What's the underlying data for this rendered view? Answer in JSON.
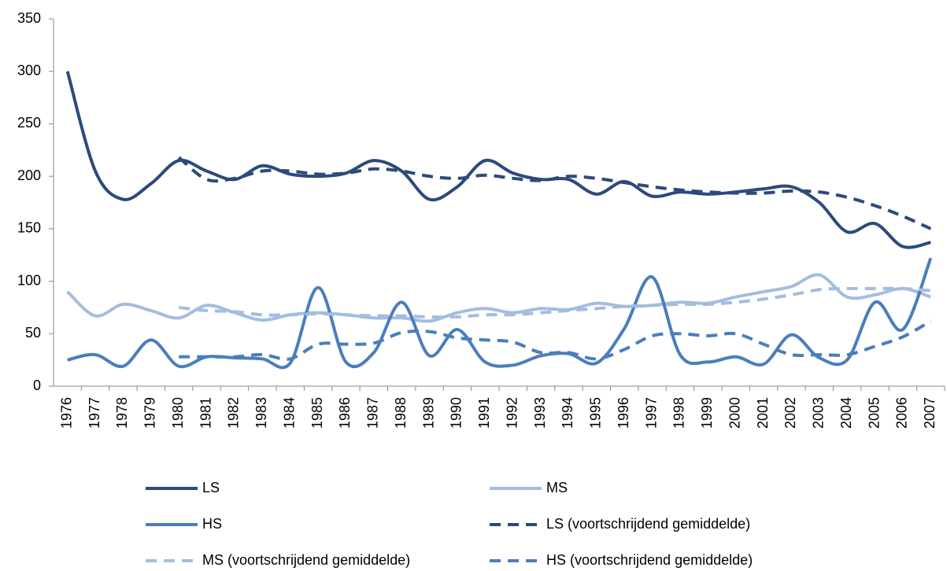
{
  "chart_data": {
    "type": "line",
    "categories": [
      "1976",
      "1977",
      "1978",
      "1979",
      "1980",
      "1981",
      "1982",
      "1983",
      "1984",
      "1985",
      "1986",
      "1987",
      "1988",
      "1989",
      "1990",
      "1991",
      "1992",
      "1993",
      "1994",
      "1995",
      "1996",
      "1997",
      "1998",
      "1999",
      "2000",
      "2001",
      "2002",
      "2003",
      "2004",
      "2005",
      "2006",
      "2007"
    ],
    "ylim": [
      0,
      350
    ],
    "yticks": [
      0,
      50,
      100,
      150,
      200,
      250,
      300,
      350
    ],
    "grid": false,
    "legend": "bottom",
    "smooth": true,
    "series": [
      {
        "name": "LS",
        "color": "#2c4a7c",
        "dashed": false,
        "values": [
          300,
          205,
          178,
          193,
          215,
          205,
          197,
          210,
          202,
          200,
          203,
          215,
          205,
          178,
          190,
          215,
          203,
          197,
          197,
          183,
          195,
          181,
          185,
          183,
          185,
          188,
          190,
          175,
          147,
          155,
          133,
          137
        ]
      },
      {
        "name": "MS",
        "color": "#a3bde0",
        "dashed": false,
        "values": [
          90,
          67,
          78,
          72,
          65,
          77,
          70,
          63,
          68,
          70,
          68,
          65,
          65,
          62,
          70,
          74,
          70,
          74,
          73,
          79,
          76,
          77,
          80,
          79,
          85,
          90,
          95,
          106,
          85,
          87,
          93,
          85
        ]
      },
      {
        "name": "HS",
        "color": "#4a7ebb",
        "dashed": false,
        "values": [
          25,
          30,
          19,
          44,
          19,
          28,
          27,
          26,
          22,
          94,
          23,
          32,
          80,
          29,
          54,
          23,
          20,
          29,
          31,
          22,
          55,
          104,
          30,
          23,
          28,
          21,
          49,
          27,
          25,
          80,
          54,
          122
        ]
      },
      {
        "name": "LS (voortschrijdend gemiddelde)",
        "color": "#2c4a7c",
        "dashed": true,
        "values": [
          null,
          null,
          null,
          null,
          218,
          197,
          198,
          205,
          205,
          202,
          203,
          207,
          205,
          200,
          198,
          201,
          198,
          196,
          200,
          198,
          194,
          190,
          187,
          185,
          184,
          184,
          186,
          185,
          180,
          172,
          162,
          150
        ]
      },
      {
        "name": "MS (voortschrijdend gemiddelde)",
        "color": "#a3bde0",
        "dashed": true,
        "values": [
          null,
          null,
          null,
          null,
          75,
          72,
          71,
          68,
          68,
          69,
          68,
          67,
          67,
          66,
          66,
          68,
          68,
          70,
          72,
          74,
          76,
          77,
          78,
          78,
          80,
          83,
          87,
          92,
          93,
          93,
          93,
          91
        ]
      },
      {
        "name": "HS (voortschrijdend gemiddelde)",
        "color": "#4a7ebb",
        "dashed": true,
        "values": [
          null,
          null,
          null,
          null,
          28,
          28,
          28,
          30,
          26,
          40,
          40,
          41,
          51,
          52,
          46,
          44,
          42,
          32,
          32,
          26,
          35,
          48,
          50,
          48,
          50,
          40,
          30,
          30,
          30,
          38,
          47,
          62
        ]
      }
    ]
  }
}
